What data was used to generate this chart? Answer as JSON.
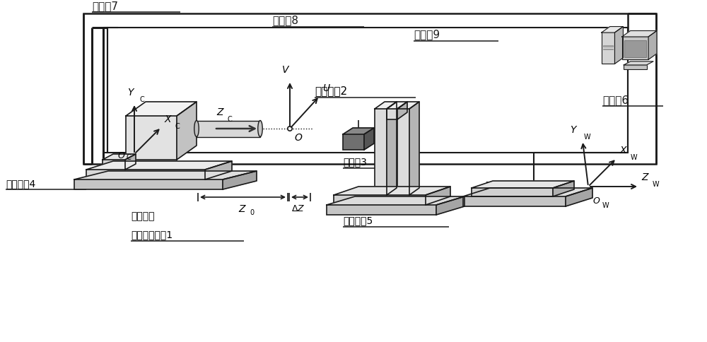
{
  "bg_color": "#ffffff",
  "line_color": "#1a1a1a",
  "label_control7": "控制线7",
  "label_control8": "控制线8",
  "label_control9": "控制线9",
  "label_computer": "计算机6",
  "label_microsphere": "微球靶标2",
  "label_clamp": "夹持器3",
  "label_platform4": "运动平台4",
  "label_platform5": "运动平台5",
  "label_system1": "显微视觉系统1",
  "label_telecentric": "物方远心"
}
